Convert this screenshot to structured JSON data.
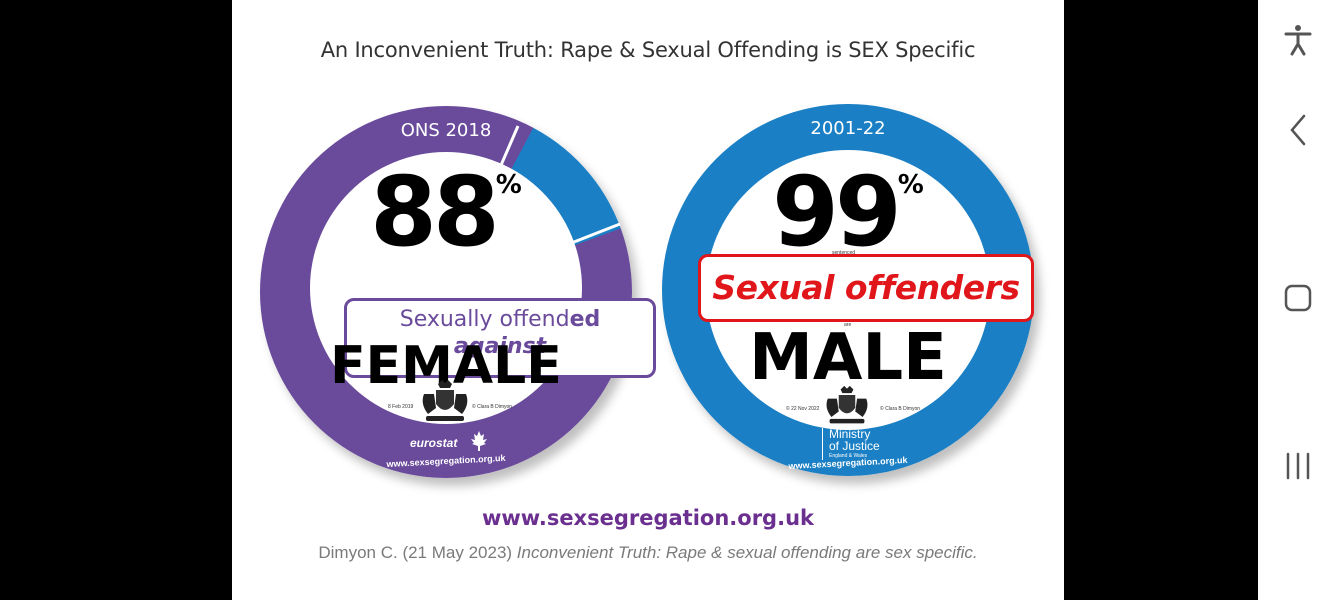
{
  "slide": {
    "title": "An Inconvenient Truth: Rape & Sexual Offending is SEX Specific",
    "site_url": "www.sexsegregation.org.uk",
    "citation_author": "Dimyon C. (21  May 2023) ",
    "citation_title": "Inconvenient Truth: Rape & sexual offending are sex specific."
  },
  "badge_left": {
    "ring_label": "ONS 2018",
    "percent": "88",
    "percent_sign": "%",
    "percent_fraction": 0.88,
    "line1_a": "Sexually offend",
    "line1_b": "ed",
    "line2": "against",
    "sex": "FEMALE",
    "tiny_date": "8 Feb 2019",
    "tiny_copy": "© Clara B Dimyon",
    "logo_text": "eurostat",
    "url": "www.sexsegregation.org.uk",
    "colors": {
      "ring": "#6a4a9b",
      "segment": "#1a7fc4"
    }
  },
  "badge_right": {
    "ring_label": "2001-22",
    "percent": "99",
    "percent_sign": "%",
    "small_word": "sentenced",
    "box_text": "Sexual offenders",
    "small_are": "are",
    "sex": "MALE",
    "tiny_date": "© 22 Nov 2022",
    "tiny_copy": "© Clara B Dimyon",
    "moj_line1": "Ministry",
    "moj_line2": "of Justice",
    "moj_line3": "England & Wales",
    "url": "www.sexsegregation.org.uk",
    "colors": {
      "ring": "#1a7fc4",
      "box": "#e0161b"
    }
  },
  "navbar": {
    "items": [
      {
        "icon": "accessibility-icon"
      },
      {
        "icon": "back-chevron-icon"
      },
      {
        "icon": "home-square-icon"
      },
      {
        "icon": "recent-apps-icon"
      }
    ]
  }
}
